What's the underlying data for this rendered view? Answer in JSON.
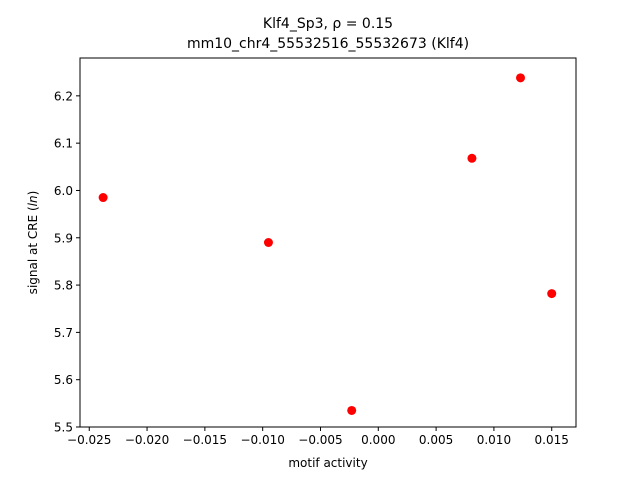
{
  "chart_data": {
    "type": "scatter",
    "title_line1": "Klf4_Sp3, ρ = 0.15",
    "title_line2": "mm10_chr4_55532516_55532673 (Klf4)",
    "xlabel": "motif activity",
    "ylabel_prefix": "signal at CRE (",
    "ylabel_italic": "ln",
    "ylabel_suffix": ")",
    "xlim": [
      -0.0258,
      0.0171
    ],
    "ylim": [
      5.5,
      6.28
    ],
    "xticks": [
      {
        "value": -0.025,
        "label": "−0.025"
      },
      {
        "value": -0.02,
        "label": "−0.020"
      },
      {
        "value": -0.015,
        "label": "−0.015"
      },
      {
        "value": -0.01,
        "label": "−0.010"
      },
      {
        "value": -0.005,
        "label": "−0.005"
      },
      {
        "value": 0.0,
        "label": "0.000"
      },
      {
        "value": 0.005,
        "label": "0.005"
      },
      {
        "value": 0.01,
        "label": "0.010"
      },
      {
        "value": 0.015,
        "label": "0.015"
      }
    ],
    "yticks": [
      {
        "value": 5.5,
        "label": "5.5"
      },
      {
        "value": 5.6,
        "label": "5.6"
      },
      {
        "value": 5.7,
        "label": "5.7"
      },
      {
        "value": 5.8,
        "label": "5.8"
      },
      {
        "value": 5.9,
        "label": "5.9"
      },
      {
        "value": 6.0,
        "label": "6.0"
      },
      {
        "value": 6.1,
        "label": "6.1"
      },
      {
        "value": 6.2,
        "label": "6.2"
      }
    ],
    "points": [
      {
        "x": -0.0238,
        "y": 5.985
      },
      {
        "x": -0.0095,
        "y": 5.89
      },
      {
        "x": -0.0023,
        "y": 5.535
      },
      {
        "x": 0.0081,
        "y": 6.068
      },
      {
        "x": 0.0123,
        "y": 6.238
      },
      {
        "x": 0.015,
        "y": 5.782
      }
    ],
    "point_color": "#ff0000",
    "grid": false,
    "legend": "none"
  }
}
